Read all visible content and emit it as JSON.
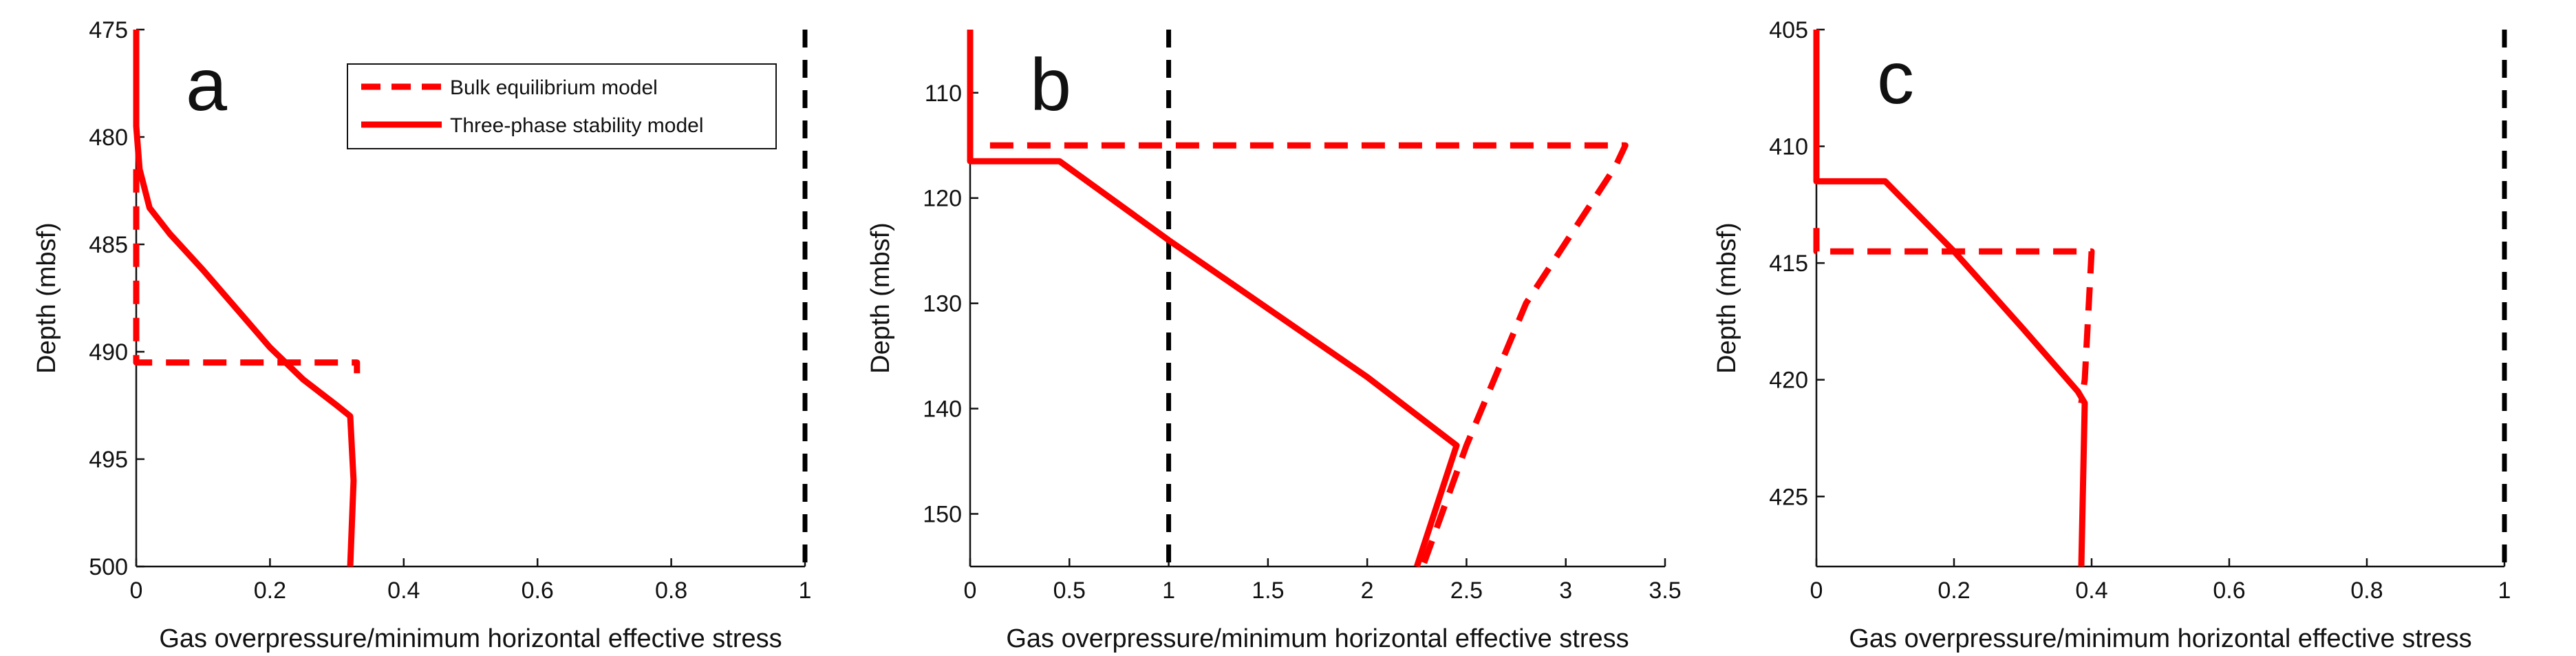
{
  "colors": {
    "series": "#ff0000",
    "reference": "#000000",
    "axes": "#111111"
  },
  "legend": {
    "location": "top-right",
    "panel": "a",
    "entries": [
      {
        "label": "Bulk equilibrium model",
        "style": "dashed"
      },
      {
        "label": "Three-phase stability model",
        "style": "solid"
      }
    ]
  },
  "chart_data": [
    {
      "panel": "a",
      "type": "line",
      "xlabel": "Gas overpressure/minimum horizontal effective stress",
      "ylabel": "Depth (mbsf)",
      "xlim": [
        0,
        1
      ],
      "ylim": [
        475,
        500
      ],
      "y_reversed": true,
      "xticks": [
        0,
        0.2,
        0.4,
        0.6,
        0.8,
        1
      ],
      "xtick_labels": [
        "0",
        "0.2",
        "0.4",
        "0.6",
        "0.8",
        "1"
      ],
      "yticks": [
        475,
        480,
        485,
        490,
        495,
        500
      ],
      "ytick_labels": [
        "475",
        "480",
        "485",
        "490",
        "495",
        "500"
      ],
      "reference_x": 1,
      "series": [
        {
          "name": "Bulk equilibrium model",
          "style": "dashed",
          "x": [
            0.0,
            0.0,
            0.33,
            0.33
          ],
          "y": [
            481.5,
            490.5,
            490.5,
            491.0
          ]
        },
        {
          "name": "Three-phase stability model",
          "style": "solid",
          "x": [
            0.0,
            0.0,
            0.005,
            0.02,
            0.05,
            0.1,
            0.15,
            0.2,
            0.25,
            0.3,
            0.32,
            0.325,
            0.32
          ],
          "y": [
            475.0,
            479.5,
            481.5,
            483.3,
            484.5,
            486.2,
            488.0,
            489.8,
            491.3,
            492.5,
            493.0,
            496.0,
            500.0
          ]
        }
      ]
    },
    {
      "panel": "b",
      "type": "line",
      "xlabel": "Gas overpressure/minimum horizontal effective stress",
      "ylabel": "Depth (mbsf)",
      "xlim": [
        0,
        3.5
      ],
      "ylim": [
        104,
        155
      ],
      "y_reversed": true,
      "xticks": [
        0,
        0.5,
        1,
        1.5,
        2,
        2.5,
        3,
        3.5
      ],
      "xtick_labels": [
        "0",
        "0.5",
        "1",
        "1.5",
        "2",
        "2.5",
        "3",
        "3.5"
      ],
      "yticks": [
        110,
        120,
        130,
        140,
        150
      ],
      "ytick_labels": [
        "110",
        "120",
        "130",
        "140",
        "150"
      ],
      "reference_x": 1,
      "series": [
        {
          "name": "Bulk equilibrium model",
          "style": "dashed",
          "x": [
            0.1,
            3.3,
            3.25,
            2.8,
            2.5,
            2.28
          ],
          "y": [
            115.0,
            115.0,
            117.0,
            130.0,
            143.5,
            155.0
          ]
        },
        {
          "name": "Three-phase stability model",
          "style": "solid",
          "x": [
            0.0,
            0.0,
            0.45,
            1.0,
            1.5,
            2.0,
            2.45,
            2.25
          ],
          "y": [
            104.0,
            116.5,
            116.5,
            124.0,
            130.5,
            137.0,
            143.5,
            155.0
          ]
        }
      ]
    },
    {
      "panel": "c",
      "type": "line",
      "xlabel": "Gas overpressure/minimum horizontal effective stress",
      "ylabel": "Depth (mbsf)",
      "xlim": [
        0,
        1
      ],
      "ylim": [
        405,
        428
      ],
      "y_reversed": true,
      "xticks": [
        0,
        0.2,
        0.4,
        0.6,
        0.8,
        1
      ],
      "xtick_labels": [
        "0",
        "0.2",
        "0.4",
        "0.6",
        "0.8",
        "1"
      ],
      "yticks": [
        405,
        410,
        415,
        420,
        425
      ],
      "ytick_labels": [
        "405",
        "410",
        "415",
        "420",
        "425"
      ],
      "reference_x": 1,
      "series": [
        {
          "name": "Bulk equilibrium model",
          "style": "dashed",
          "x": [
            0.0,
            0.0,
            0.4,
            0.39,
            0.385
          ],
          "y": [
            413.5,
            414.5,
            414.5,
            420.0,
            421.0
          ]
        },
        {
          "name": "Three-phase stability model",
          "style": "solid",
          "x": [
            0.0,
            0.0,
            0.1,
            0.2,
            0.3,
            0.38,
            0.39,
            0.385
          ],
          "y": [
            405.0,
            411.5,
            411.5,
            414.5,
            417.8,
            420.5,
            421.0,
            428.0
          ]
        }
      ]
    }
  ]
}
